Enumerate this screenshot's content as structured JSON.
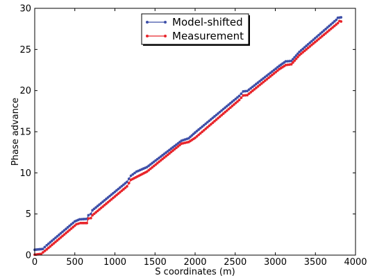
{
  "chart_data": {
    "type": "line",
    "title": "",
    "xlabel": "S coordinates (m)",
    "ylabel": "Phase advance",
    "xlim": [
      0,
      4000
    ],
    "ylim": [
      0,
      30
    ],
    "xticks": [
      "0",
      "500",
      "1000",
      "1500",
      "2000",
      "2500",
      "3000",
      "3500",
      "4000"
    ],
    "yticks": [
      "0",
      "5",
      "10",
      "15",
      "20",
      "25",
      "30"
    ],
    "grid": false,
    "legend_position": "top-center",
    "series": [
      {
        "name": "Model-shifted",
        "color": "#3d4fa8",
        "marker": "circle",
        "points": [
          [
            0,
            0.65
          ],
          [
            100,
            0.75
          ],
          [
            150,
            1.2
          ],
          [
            500,
            4.1
          ],
          [
            560,
            4.35
          ],
          [
            650,
            4.4
          ],
          [
            670,
            4.85
          ],
          [
            700,
            5.0
          ],
          [
            720,
            5.45
          ],
          [
            1150,
            8.9
          ],
          [
            1200,
            9.65
          ],
          [
            1270,
            10.15
          ],
          [
            1400,
            10.7
          ],
          [
            1830,
            13.9
          ],
          [
            1920,
            14.2
          ],
          [
            2000,
            14.9
          ],
          [
            2550,
            19.35
          ],
          [
            2600,
            19.9
          ],
          [
            2650,
            19.95
          ],
          [
            3050,
            23.0
          ],
          [
            3130,
            23.55
          ],
          [
            3200,
            23.6
          ],
          [
            3300,
            24.7
          ],
          [
            3760,
            28.6
          ],
          [
            3780,
            28.85
          ],
          [
            3820,
            28.9
          ]
        ]
      },
      {
        "name": "Measurement",
        "color": "#e8242a",
        "marker": "circle",
        "points": [
          [
            0,
            0.05
          ],
          [
            80,
            0.15
          ],
          [
            150,
            0.7
          ],
          [
            520,
            3.75
          ],
          [
            570,
            3.9
          ],
          [
            650,
            3.9
          ],
          [
            670,
            4.45
          ],
          [
            700,
            4.5
          ],
          [
            720,
            4.85
          ],
          [
            1150,
            8.35
          ],
          [
            1200,
            9.15
          ],
          [
            1300,
            9.65
          ],
          [
            1400,
            10.15
          ],
          [
            1830,
            13.55
          ],
          [
            1920,
            13.75
          ],
          [
            2000,
            14.25
          ],
          [
            2550,
            18.85
          ],
          [
            2600,
            19.4
          ],
          [
            2650,
            19.45
          ],
          [
            3050,
            22.6
          ],
          [
            3130,
            23.1
          ],
          [
            3200,
            23.2
          ],
          [
            3300,
            24.3
          ],
          [
            3780,
            28.2
          ],
          [
            3800,
            28.45
          ],
          [
            3820,
            28.4
          ]
        ]
      }
    ]
  }
}
